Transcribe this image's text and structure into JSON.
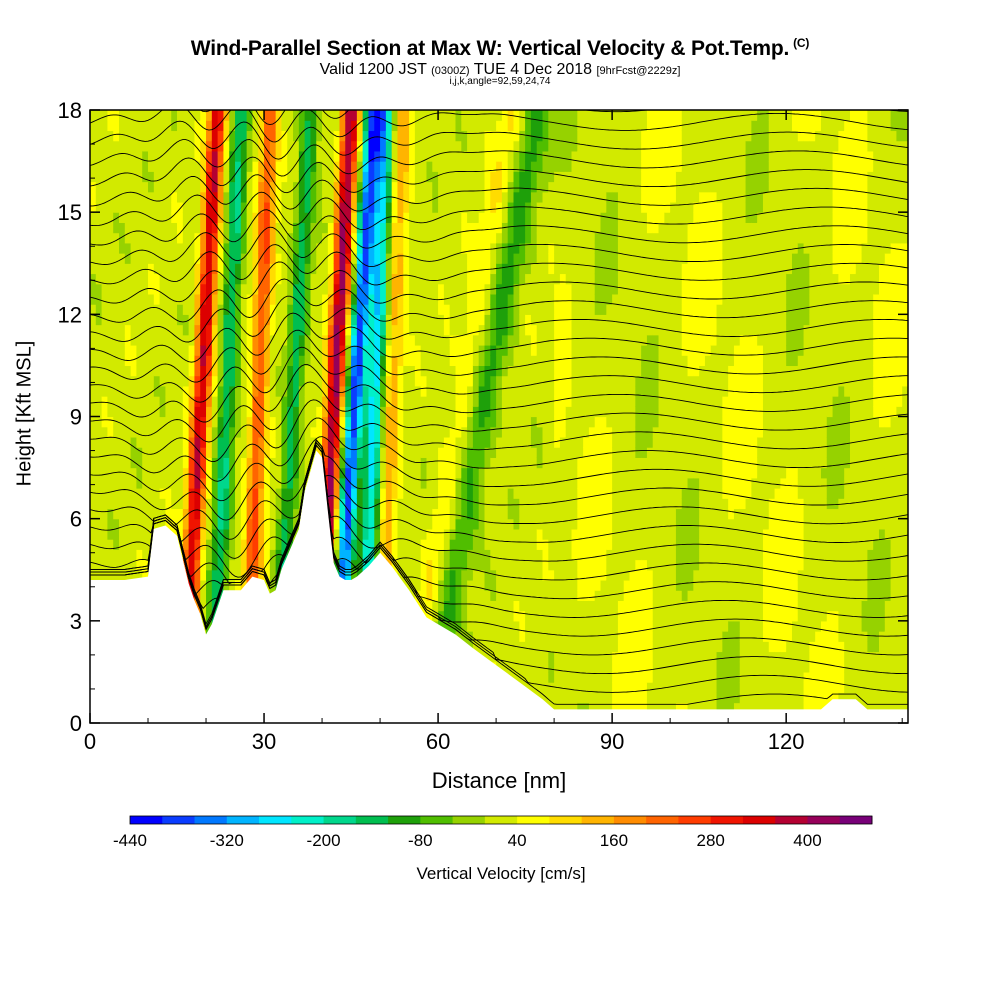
{
  "header": {
    "title": "Wind-Parallel Section at Max W: Vertical Velocity & Pot.Temp.",
    "title_mark": "(C)",
    "valid_prefix": "Valid 1200 JST",
    "valid_utc": "(0300Z)",
    "valid_date": "TUE 4 Dec 2018",
    "forecast": "[9hrFcst@2229z]",
    "indices": "i,j,k,angle=92,59,24,74"
  },
  "chart_data": {
    "type": "heatmap",
    "xlabel": "Distance [nm]",
    "ylabel": "Height [Kft MSL]",
    "xlim": [
      0,
      141
    ],
    "ylim": [
      0,
      18
    ],
    "x_ticks": [
      0,
      30,
      60,
      90,
      120
    ],
    "y_ticks": [
      0,
      3,
      6,
      9,
      12,
      15,
      18
    ],
    "colorbar": {
      "label": "Vertical Velocity [cm/s]",
      "tick_values": [
        -440,
        -320,
        -200,
        -80,
        40,
        160,
        280,
        400
      ],
      "levels": [
        -440,
        -400,
        -360,
        -320,
        -280,
        -240,
        -200,
        -160,
        -120,
        -80,
        -40,
        0,
        40,
        80,
        120,
        160,
        200,
        240,
        280,
        320,
        360,
        400,
        440
      ],
      "colors": [
        "#0000ff",
        "#0a3cff",
        "#0078ff",
        "#00b4ff",
        "#00e6ff",
        "#00f0c8",
        "#00d78c",
        "#00be50",
        "#1ea00a",
        "#50be00",
        "#96d200",
        "#d2ea00",
        "#ffff00",
        "#ffdc00",
        "#ffb400",
        "#ff8c00",
        "#ff6400",
        "#ff3c00",
        "#f01400",
        "#dc0000",
        "#b40032",
        "#96005a",
        "#780078"
      ]
    },
    "terrain": {
      "x": [
        0,
        6,
        10,
        11,
        13,
        15,
        17,
        18,
        19,
        20,
        21,
        23,
        26,
        28,
        30,
        31,
        32,
        33,
        34,
        36,
        37,
        38,
        39,
        40,
        41,
        42,
        43,
        44,
        45,
        46,
        48,
        50,
        52,
        55,
        58,
        60,
        63,
        66,
        70,
        74,
        78,
        80,
        90,
        100,
        110,
        120,
        126,
        128,
        132,
        134,
        141
      ],
      "height_kft": [
        4.2,
        4.2,
        4.3,
        5.7,
        5.8,
        5.5,
        4.1,
        3.6,
        3.2,
        2.6,
        2.9,
        3.9,
        3.9,
        4.3,
        4.2,
        3.8,
        3.9,
        4.5,
        4.9,
        5.7,
        6.8,
        7.4,
        8.0,
        7.8,
        6.2,
        4.7,
        4.3,
        4.2,
        4.2,
        4.3,
        4.6,
        5.0,
        4.6,
        3.9,
        3.1,
        2.9,
        2.6,
        2.2,
        1.7,
        1.2,
        0.7,
        0.4,
        0.4,
        0.4,
        0.4,
        0.4,
        0.4,
        0.7,
        0.7,
        0.4,
        0.4
      ]
    },
    "updrafts": [
      {
        "x_bottom": 16,
        "x_top": 22,
        "peak": 340
      },
      {
        "x_bottom": 27,
        "x_top": 31,
        "peak": 220
      },
      {
        "x_bottom": 39,
        "x_top": 45,
        "peak": 400
      },
      {
        "x_bottom": 50,
        "x_top": 54,
        "peak": 120
      },
      {
        "x_bottom": 55,
        "x_top": 73,
        "peak": 60
      }
    ],
    "downdrafts": [
      {
        "x_bottom": 21,
        "x_top": 26,
        "peak": -180
      },
      {
        "x_bottom": 32,
        "x_top": 38,
        "peak": -160
      },
      {
        "x_bottom": 42,
        "x_top": 49,
        "peak": -400
      },
      {
        "x_bottom": 47,
        "x_top": 51,
        "peak": -280
      },
      {
        "x_bottom": 58,
        "x_top": 77,
        "peak": -120
      }
    ]
  }
}
